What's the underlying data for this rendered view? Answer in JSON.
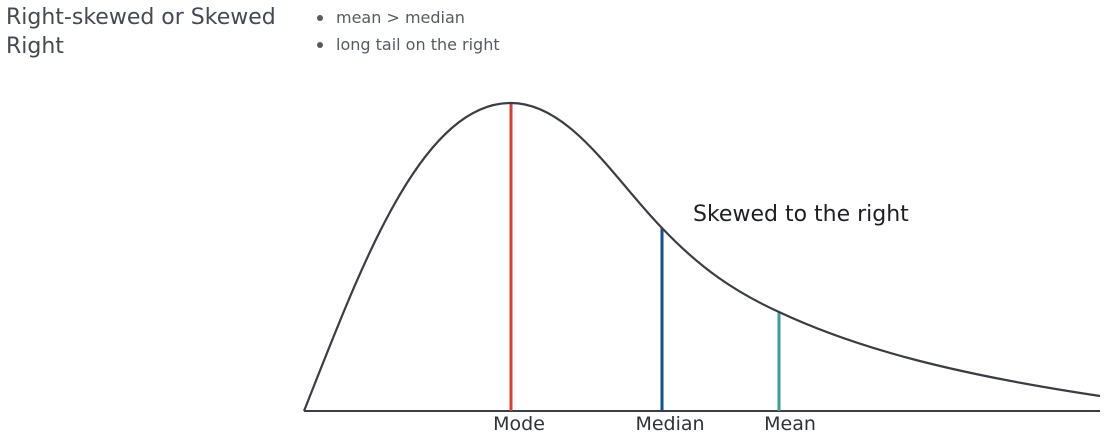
{
  "heading": "Right-skewed or Skewed Right",
  "bullets": [
    "mean > median",
    "long tail on the right"
  ],
  "diagram": {
    "annotation": "Skewed to the right",
    "markers": [
      {
        "label": "Mode",
        "color": "#e03c36"
      },
      {
        "label": "Median",
        "color": "#124f8c"
      },
      {
        "label": "Mean",
        "color": "#3f9a9a"
      }
    ],
    "curve_color": "#3a3d44",
    "axis_color": "#3a3d44"
  }
}
